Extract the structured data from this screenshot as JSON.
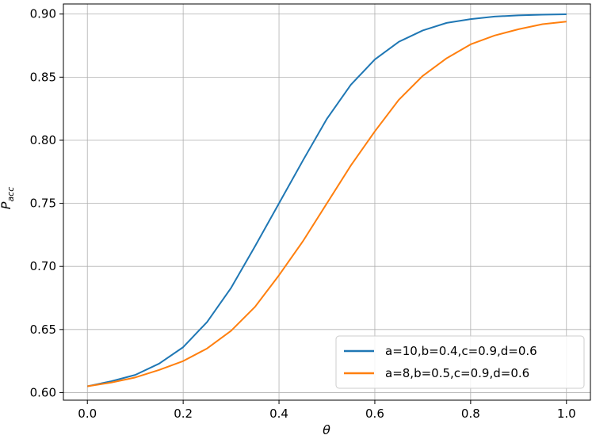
{
  "chart_data": {
    "type": "line",
    "title": "",
    "xlabel": "θ",
    "ylabel_main": "P",
    "ylabel_sub": "acc",
    "xlim": [
      -0.05,
      1.05
    ],
    "ylim": [
      0.594,
      0.908
    ],
    "grid": true,
    "legend_position": "lower-right",
    "xticks": [
      0.0,
      0.2,
      0.4,
      0.6,
      0.8,
      1.0
    ],
    "xtick_labels": [
      "0.0",
      "0.2",
      "0.4",
      "0.6",
      "0.8",
      "1.0"
    ],
    "yticks": [
      0.6,
      0.65,
      0.7,
      0.75,
      0.8,
      0.85,
      0.9
    ],
    "ytick_labels": [
      "0.60",
      "0.65",
      "0.70",
      "0.75",
      "0.80",
      "0.85",
      "0.90"
    ],
    "x": [
      0.0,
      0.05,
      0.1,
      0.15,
      0.2,
      0.25,
      0.3,
      0.35,
      0.4,
      0.45,
      0.5,
      0.55,
      0.6,
      0.65,
      0.7,
      0.75,
      0.8,
      0.85,
      0.9,
      0.95,
      1.0
    ],
    "series": [
      {
        "name": "a=10,b=0.4,c=0.9,d=0.6",
        "color": "#1f77b4",
        "values": [
          0.605,
          0.609,
          0.614,
          0.623,
          0.636,
          0.656,
          0.683,
          0.716,
          0.75,
          0.784,
          0.817,
          0.844,
          0.864,
          0.878,
          0.887,
          0.893,
          0.896,
          0.898,
          0.899,
          0.8995,
          0.8998
        ]
      },
      {
        "name": "a=8,b=0.5,c=0.9,d=0.6",
        "color": "#ff7f0e",
        "values": [
          0.605,
          0.608,
          0.612,
          0.618,
          0.625,
          0.635,
          0.649,
          0.668,
          0.693,
          0.72,
          0.75,
          0.78,
          0.807,
          0.832,
          0.851,
          0.865,
          0.876,
          0.883,
          0.888,
          0.892,
          0.894
        ]
      }
    ]
  }
}
